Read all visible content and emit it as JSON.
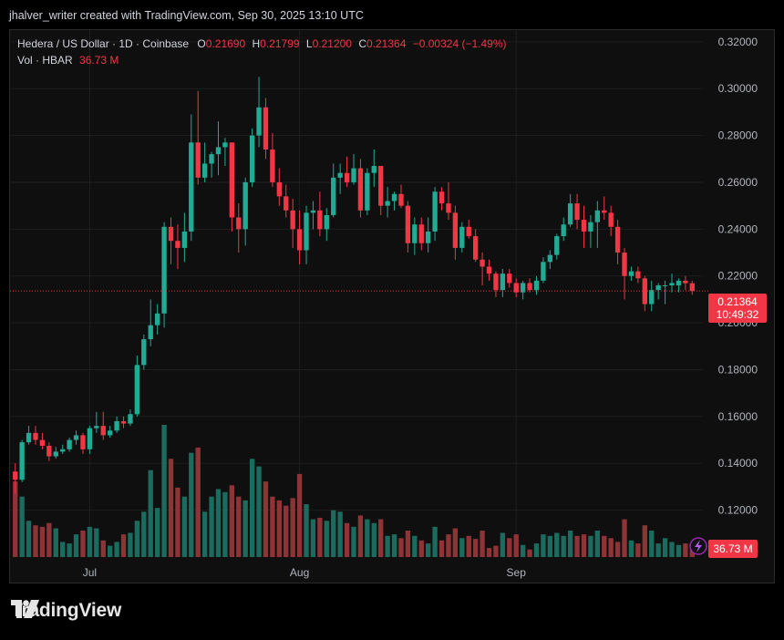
{
  "header": {
    "credit": "jhalver_writer created with TradingView.com, Sep 30, 2025 13:10 UTC"
  },
  "legend": {
    "symbol": "Hedera / US Dollar · 1D · Coinbase",
    "o_label": "O",
    "o_value": "0.21690",
    "h_label": "H",
    "h_value": "0.21799",
    "l_label": "L",
    "l_value": "0.21200",
    "c_label": "C",
    "c_value": "0.21364",
    "change": "−0.00324 (−1.49%)",
    "vol_label": "Vol · HBAR",
    "vol_value": "36.73 M"
  },
  "price_tag": {
    "price": "0.21364",
    "countdown": "10:49:32"
  },
  "volume_tag": "36.73 M",
  "brand": {
    "name": "TradingView"
  },
  "colors": {
    "up": "#22ab94",
    "down": "#f23645",
    "vol_up": "#1b6b5e",
    "vol_down": "#8e3437",
    "grid": "#1f1f1f",
    "axis_text": "#b2b5be"
  },
  "chart_data": {
    "type": "candlestick",
    "ylim": [
      0.1,
      0.325
    ],
    "yticks": [
      "0.12000",
      "0.14000",
      "0.16000",
      "0.18000",
      "0.20000",
      "0.22000",
      "0.24000",
      "0.26000",
      "0.28000",
      "0.30000",
      "0.32000"
    ],
    "xticks": [
      {
        "label": "Jul",
        "index": 11
      },
      {
        "label": "Aug",
        "index": 42
      },
      {
        "label": "Sep",
        "index": 74
      }
    ],
    "last_price": 0.21364,
    "candles": [
      {
        "date": "Jun 21",
        "o": 0.1365,
        "h": 0.14,
        "l": 0.127,
        "c": 0.133,
        "v": 100
      },
      {
        "date": "Jun 22",
        "o": 0.133,
        "h": 0.15,
        "l": 0.132,
        "c": 0.149,
        "v": 80
      },
      {
        "date": "Jun 23",
        "o": 0.149,
        "h": 0.156,
        "l": 0.148,
        "c": 0.153,
        "v": 48
      },
      {
        "date": "Jun 24",
        "o": 0.153,
        "h": 0.156,
        "l": 0.148,
        "c": 0.15,
        "v": 42
      },
      {
        "date": "Jun 25",
        "o": 0.15,
        "h": 0.153,
        "l": 0.146,
        "c": 0.1475,
        "v": 40
      },
      {
        "date": "Jun 26",
        "o": 0.1475,
        "h": 0.149,
        "l": 0.141,
        "c": 0.143,
        "v": 45
      },
      {
        "date": "Jun 27",
        "o": 0.143,
        "h": 0.147,
        "l": 0.142,
        "c": 0.145,
        "v": 38
      },
      {
        "date": "Jun 28",
        "o": 0.145,
        "h": 0.148,
        "l": 0.144,
        "c": 0.146,
        "v": 20
      },
      {
        "date": "Jun 29",
        "o": 0.146,
        "h": 0.151,
        "l": 0.145,
        "c": 0.15,
        "v": 18
      },
      {
        "date": "Jun 30",
        "o": 0.15,
        "h": 0.154,
        "l": 0.148,
        "c": 0.152,
        "v": 30
      },
      {
        "date": "Jul 1",
        "o": 0.152,
        "h": 0.153,
        "l": 0.144,
        "c": 0.146,
        "v": 35
      },
      {
        "date": "Jul 2",
        "o": 0.146,
        "h": 0.156,
        "l": 0.144,
        "c": 0.155,
        "v": 40
      },
      {
        "date": "Jul 3",
        "o": 0.155,
        "h": 0.162,
        "l": 0.153,
        "c": 0.156,
        "v": 38
      },
      {
        "date": "Jul 4",
        "o": 0.156,
        "h": 0.162,
        "l": 0.15,
        "c": 0.152,
        "v": 22
      },
      {
        "date": "Jul 5",
        "o": 0.152,
        "h": 0.156,
        "l": 0.151,
        "c": 0.154,
        "v": 15
      },
      {
        "date": "Jul 6",
        "o": 0.154,
        "h": 0.16,
        "l": 0.153,
        "c": 0.158,
        "v": 20
      },
      {
        "date": "Jul 7",
        "o": 0.158,
        "h": 0.16,
        "l": 0.155,
        "c": 0.157,
        "v": 30
      },
      {
        "date": "Jul 8",
        "o": 0.157,
        "h": 0.163,
        "l": 0.156,
        "c": 0.161,
        "v": 32
      },
      {
        "date": "Jul 9",
        "o": 0.161,
        "h": 0.186,
        "l": 0.16,
        "c": 0.182,
        "v": 48
      },
      {
        "date": "Jul 10",
        "o": 0.182,
        "h": 0.195,
        "l": 0.18,
        "c": 0.193,
        "v": 60
      },
      {
        "date": "Jul 11",
        "o": 0.193,
        "h": 0.21,
        "l": 0.19,
        "c": 0.199,
        "v": 115
      },
      {
        "date": "Jul 12",
        "o": 0.199,
        "h": 0.208,
        "l": 0.195,
        "c": 0.204,
        "v": 65
      },
      {
        "date": "Jul 13",
        "o": 0.204,
        "h": 0.243,
        "l": 0.198,
        "c": 0.241,
        "v": 175
      },
      {
        "date": "Jul 14",
        "o": 0.241,
        "h": 0.245,
        "l": 0.225,
        "c": 0.235,
        "v": 130
      },
      {
        "date": "Jul 15",
        "o": 0.235,
        "h": 0.242,
        "l": 0.223,
        "c": 0.232,
        "v": 92
      },
      {
        "date": "Jul 16",
        "o": 0.232,
        "h": 0.247,
        "l": 0.226,
        "c": 0.239,
        "v": 80
      },
      {
        "date": "Jul 17",
        "o": 0.239,
        "h": 0.289,
        "l": 0.235,
        "c": 0.277,
        "v": 138
      },
      {
        "date": "Jul 18",
        "o": 0.277,
        "h": 0.299,
        "l": 0.259,
        "c": 0.262,
        "v": 145
      },
      {
        "date": "Jul 19",
        "o": 0.262,
        "h": 0.277,
        "l": 0.26,
        "c": 0.268,
        "v": 60
      },
      {
        "date": "Jul 20",
        "o": 0.268,
        "h": 0.273,
        "l": 0.262,
        "c": 0.272,
        "v": 80
      },
      {
        "date": "Jul 21",
        "o": 0.272,
        "h": 0.286,
        "l": 0.263,
        "c": 0.275,
        "v": 90
      },
      {
        "date": "Jul 22",
        "o": 0.275,
        "h": 0.279,
        "l": 0.267,
        "c": 0.277,
        "v": 86
      },
      {
        "date": "Jul 23",
        "o": 0.277,
        "h": 0.277,
        "l": 0.239,
        "c": 0.245,
        "v": 95
      },
      {
        "date": "Jul 24",
        "o": 0.245,
        "h": 0.251,
        "l": 0.23,
        "c": 0.24,
        "v": 80
      },
      {
        "date": "Jul 25",
        "o": 0.24,
        "h": 0.262,
        "l": 0.233,
        "c": 0.26,
        "v": 75
      },
      {
        "date": "Jul 26",
        "o": 0.26,
        "h": 0.283,
        "l": 0.258,
        "c": 0.28,
        "v": 130
      },
      {
        "date": "Jul 27",
        "o": 0.28,
        "h": 0.305,
        "l": 0.275,
        "c": 0.292,
        "v": 120
      },
      {
        "date": "Jul 28",
        "o": 0.292,
        "h": 0.296,
        "l": 0.27,
        "c": 0.274,
        "v": 100
      },
      {
        "date": "Jul 29",
        "o": 0.274,
        "h": 0.281,
        "l": 0.258,
        "c": 0.26,
        "v": 80
      },
      {
        "date": "Jul 30",
        "o": 0.26,
        "h": 0.266,
        "l": 0.25,
        "c": 0.254,
        "v": 75
      },
      {
        "date": "Jul 31",
        "o": 0.254,
        "h": 0.259,
        "l": 0.245,
        "c": 0.248,
        "v": 68
      },
      {
        "date": "Aug 1",
        "o": 0.248,
        "h": 0.253,
        "l": 0.232,
        "c": 0.24,
        "v": 78
      },
      {
        "date": "Aug 2",
        "o": 0.24,
        "h": 0.248,
        "l": 0.225,
        "c": 0.231,
        "v": 110
      },
      {
        "date": "Aug 3",
        "o": 0.231,
        "h": 0.25,
        "l": 0.225,
        "c": 0.247,
        "v": 70
      },
      {
        "date": "Aug 4",
        "o": 0.247,
        "h": 0.252,
        "l": 0.24,
        "c": 0.248,
        "v": 50
      },
      {
        "date": "Aug 5",
        "o": 0.248,
        "h": 0.256,
        "l": 0.237,
        "c": 0.24,
        "v": 52
      },
      {
        "date": "Aug 6",
        "o": 0.24,
        "h": 0.249,
        "l": 0.235,
        "c": 0.246,
        "v": 48
      },
      {
        "date": "Aug 7",
        "o": 0.246,
        "h": 0.268,
        "l": 0.245,
        "c": 0.262,
        "v": 62
      },
      {
        "date": "Aug 8",
        "o": 0.262,
        "h": 0.268,
        "l": 0.255,
        "c": 0.264,
        "v": 60
      },
      {
        "date": "Aug 9",
        "o": 0.264,
        "h": 0.271,
        "l": 0.258,
        "c": 0.26,
        "v": 45
      },
      {
        "date": "Aug 10",
        "o": 0.26,
        "h": 0.272,
        "l": 0.259,
        "c": 0.266,
        "v": 40
      },
      {
        "date": "Aug 11",
        "o": 0.266,
        "h": 0.27,
        "l": 0.245,
        "c": 0.248,
        "v": 55
      },
      {
        "date": "Aug 12",
        "o": 0.248,
        "h": 0.266,
        "l": 0.246,
        "c": 0.264,
        "v": 50
      },
      {
        "date": "Aug 13",
        "o": 0.264,
        "h": 0.274,
        "l": 0.258,
        "c": 0.267,
        "v": 45
      },
      {
        "date": "Aug 14",
        "o": 0.267,
        "h": 0.267,
        "l": 0.246,
        "c": 0.25,
        "v": 50
      },
      {
        "date": "Aug 15",
        "o": 0.25,
        "h": 0.258,
        "l": 0.245,
        "c": 0.252,
        "v": 28
      },
      {
        "date": "Aug 16",
        "o": 0.252,
        "h": 0.256,
        "l": 0.248,
        "c": 0.255,
        "v": 30
      },
      {
        "date": "Aug 17",
        "o": 0.255,
        "h": 0.259,
        "l": 0.249,
        "c": 0.25,
        "v": 25
      },
      {
        "date": "Aug 18",
        "o": 0.25,
        "h": 0.252,
        "l": 0.23,
        "c": 0.234,
        "v": 35
      },
      {
        "date": "Aug 19",
        "o": 0.234,
        "h": 0.245,
        "l": 0.229,
        "c": 0.242,
        "v": 28
      },
      {
        "date": "Aug 20",
        "o": 0.242,
        "h": 0.245,
        "l": 0.231,
        "c": 0.234,
        "v": 22
      },
      {
        "date": "Aug 21",
        "o": 0.234,
        "h": 0.245,
        "l": 0.23,
        "c": 0.239,
        "v": 18
      },
      {
        "date": "Aug 22",
        "o": 0.239,
        "h": 0.258,
        "l": 0.235,
        "c": 0.256,
        "v": 40
      },
      {
        "date": "Aug 23",
        "o": 0.256,
        "h": 0.258,
        "l": 0.248,
        "c": 0.251,
        "v": 22
      },
      {
        "date": "Aug 24",
        "o": 0.251,
        "h": 0.26,
        "l": 0.244,
        "c": 0.247,
        "v": 30
      },
      {
        "date": "Aug 25",
        "o": 0.247,
        "h": 0.25,
        "l": 0.227,
        "c": 0.232,
        "v": 38
      },
      {
        "date": "Aug 26",
        "o": 0.232,
        "h": 0.243,
        "l": 0.23,
        "c": 0.241,
        "v": 25
      },
      {
        "date": "Aug 27",
        "o": 0.241,
        "h": 0.244,
        "l": 0.236,
        "c": 0.237,
        "v": 28
      },
      {
        "date": "Aug 28",
        "o": 0.237,
        "h": 0.24,
        "l": 0.226,
        "c": 0.227,
        "v": 24
      },
      {
        "date": "Aug 29",
        "o": 0.227,
        "h": 0.23,
        "l": 0.216,
        "c": 0.224,
        "v": 35
      },
      {
        "date": "Aug 30",
        "o": 0.224,
        "h": 0.227,
        "l": 0.218,
        "c": 0.221,
        "v": 12
      },
      {
        "date": "Aug 31",
        "o": 0.221,
        "h": 0.222,
        "l": 0.211,
        "c": 0.214,
        "v": 15
      },
      {
        "date": "Sep 1",
        "o": 0.214,
        "h": 0.223,
        "l": 0.211,
        "c": 0.221,
        "v": 32
      },
      {
        "date": "Sep 2",
        "o": 0.221,
        "h": 0.223,
        "l": 0.215,
        "c": 0.217,
        "v": 25
      },
      {
        "date": "Sep 3",
        "o": 0.217,
        "h": 0.219,
        "l": 0.211,
        "c": 0.213,
        "v": 30
      },
      {
        "date": "Sep 4",
        "o": 0.213,
        "h": 0.218,
        "l": 0.21,
        "c": 0.217,
        "v": 16
      },
      {
        "date": "Sep 5",
        "o": 0.217,
        "h": 0.219,
        "l": 0.213,
        "c": 0.214,
        "v": 10
      },
      {
        "date": "Sep 6",
        "o": 0.214,
        "h": 0.22,
        "l": 0.212,
        "c": 0.218,
        "v": 18
      },
      {
        "date": "Sep 7",
        "o": 0.218,
        "h": 0.228,
        "l": 0.217,
        "c": 0.226,
        "v": 30
      },
      {
        "date": "Sep 8",
        "o": 0.226,
        "h": 0.231,
        "l": 0.223,
        "c": 0.229,
        "v": 28
      },
      {
        "date": "Sep 9",
        "o": 0.229,
        "h": 0.238,
        "l": 0.227,
        "c": 0.237,
        "v": 32
      },
      {
        "date": "Sep 10",
        "o": 0.237,
        "h": 0.245,
        "l": 0.235,
        "c": 0.242,
        "v": 28
      },
      {
        "date": "Sep 11",
        "o": 0.242,
        "h": 0.255,
        "l": 0.241,
        "c": 0.251,
        "v": 35
      },
      {
        "date": "Sep 12",
        "o": 0.251,
        "h": 0.255,
        "l": 0.24,
        "c": 0.244,
        "v": 28
      },
      {
        "date": "Sep 13",
        "o": 0.244,
        "h": 0.25,
        "l": 0.232,
        "c": 0.239,
        "v": 30
      },
      {
        "date": "Sep 14",
        "o": 0.239,
        "h": 0.246,
        "l": 0.232,
        "c": 0.243,
        "v": 28
      },
      {
        "date": "Sep 15",
        "o": 0.243,
        "h": 0.252,
        "l": 0.232,
        "c": 0.248,
        "v": 35
      },
      {
        "date": "Sep 16",
        "o": 0.248,
        "h": 0.254,
        "l": 0.244,
        "c": 0.247,
        "v": 28
      },
      {
        "date": "Sep 17",
        "o": 0.247,
        "h": 0.25,
        "l": 0.237,
        "c": 0.241,
        "v": 25
      },
      {
        "date": "Sep 18",
        "o": 0.241,
        "h": 0.244,
        "l": 0.225,
        "c": 0.23,
        "v": 20
      },
      {
        "date": "Sep 19",
        "o": 0.23,
        "h": 0.232,
        "l": 0.21,
        "c": 0.22,
        "v": 50
      },
      {
        "date": "Sep 20",
        "o": 0.22,
        "h": 0.224,
        "l": 0.218,
        "c": 0.222,
        "v": 22
      },
      {
        "date": "Sep 21",
        "o": 0.222,
        "h": 0.224,
        "l": 0.217,
        "c": 0.219,
        "v": 18
      },
      {
        "date": "Sep 22",
        "o": 0.219,
        "h": 0.22,
        "l": 0.205,
        "c": 0.208,
        "v": 42
      },
      {
        "date": "Sep 23",
        "o": 0.208,
        "h": 0.218,
        "l": 0.205,
        "c": 0.214,
        "v": 35
      },
      {
        "date": "Sep 24",
        "o": 0.214,
        "h": 0.217,
        "l": 0.21,
        "c": 0.216,
        "v": 18
      },
      {
        "date": "Sep 25",
        "o": 0.216,
        "h": 0.218,
        "l": 0.208,
        "c": 0.216,
        "v": 25
      },
      {
        "date": "Sep 26",
        "o": 0.216,
        "h": 0.221,
        "l": 0.213,
        "c": 0.217,
        "v": 20
      },
      {
        "date": "Sep 27",
        "o": 0.216,
        "h": 0.219,
        "l": 0.213,
        "c": 0.218,
        "v": 16
      },
      {
        "date": "Sep 28",
        "o": 0.218,
        "h": 0.22,
        "l": 0.214,
        "c": 0.2169,
        "v": 18
      },
      {
        "date": "Sep 29",
        "o": 0.2169,
        "h": 0.218,
        "l": 0.212,
        "c": 0.2136,
        "v": 10
      }
    ]
  }
}
